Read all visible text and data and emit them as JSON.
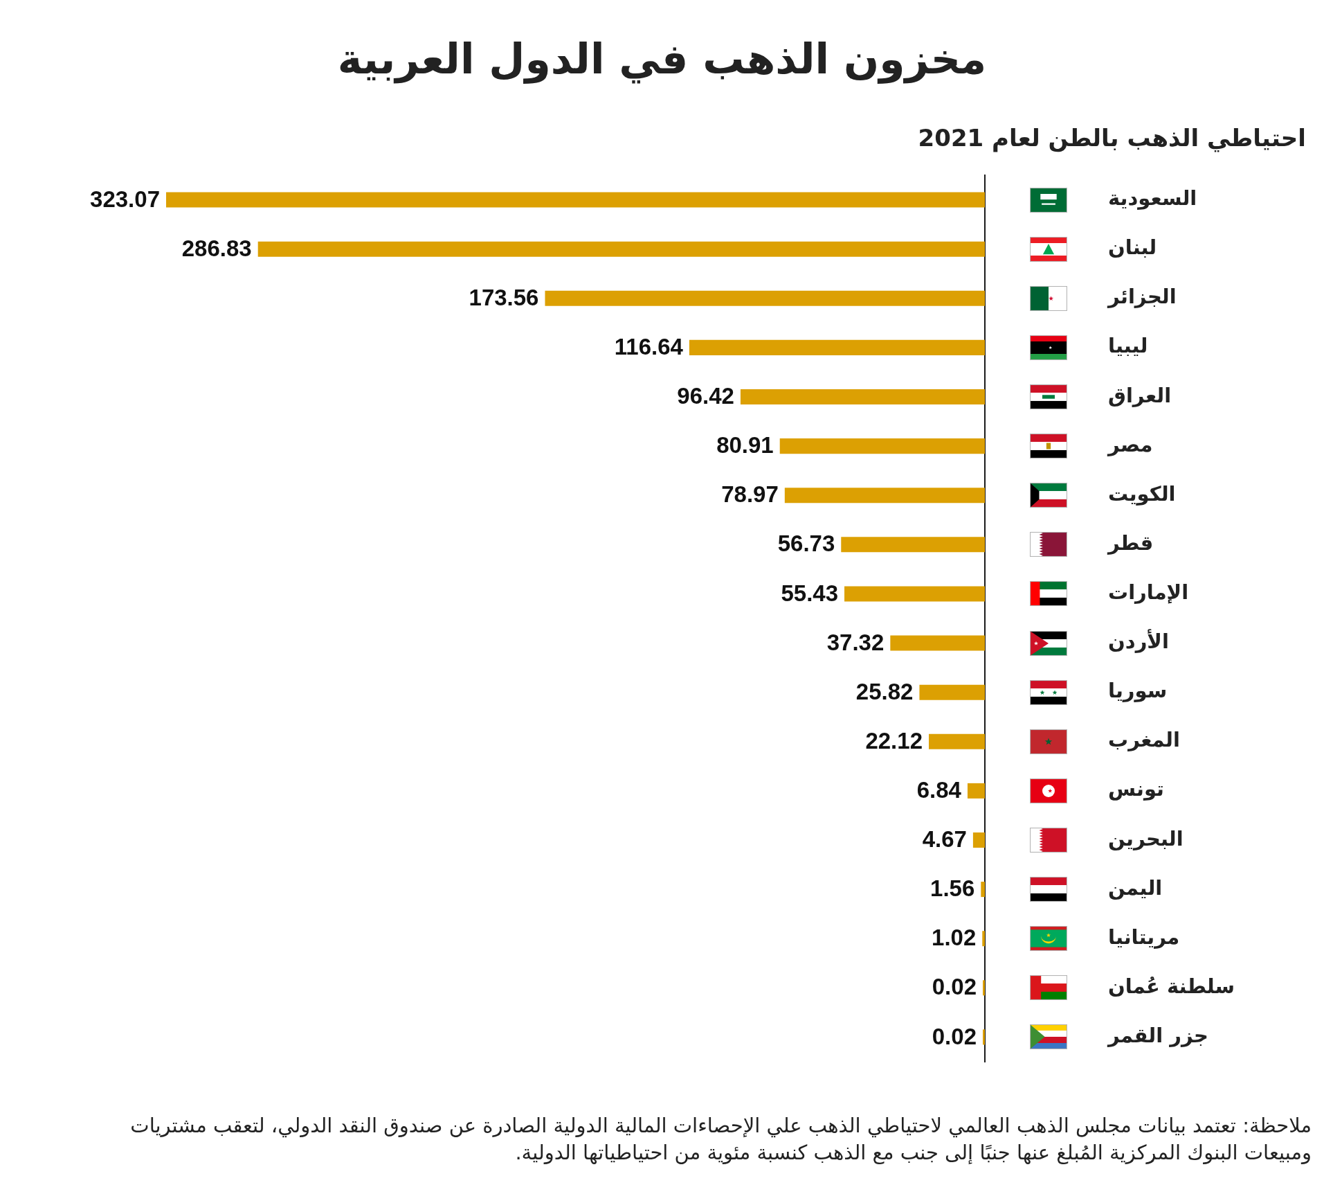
{
  "chart_data": {
    "type": "bar",
    "title": "مخزون الذهب في الدول العربية",
    "subtitle": "احتياطي الذهب بالطن لعام 2021",
    "orientation": "horizontal",
    "categories": [
      "السعودية",
      "لبنان",
      "الجزائر",
      "ليبيا",
      "العراق",
      "مصر",
      "الكويت",
      "قطر",
      "الإمارات",
      "الأردن",
      "سوريا",
      "المغرب",
      "تونس",
      "البحرين",
      "اليمن",
      "مريتانيا",
      "سلطنة عُمان",
      "جزر القمر"
    ],
    "values": [
      323.07,
      286.83,
      173.56,
      116.64,
      96.42,
      80.91,
      78.97,
      56.73,
      55.43,
      37.32,
      25.82,
      22.12,
      6.84,
      4.67,
      1.56,
      1.02,
      0.02,
      0.02
    ],
    "color": "#dca003",
    "data_labels": true,
    "tick_labels": "y",
    "annotations": [
      "ملاحظة: تعتمد بيانات مجلس الذهب العالمي لاحتياطي الذهب علي الإحصاءات المالية الدولية الصادرة عن صندوق النقد الدولي، لتعقب مشتريات ومبيعات البنوك المركزية المُبلغ عنها جنبًا إلى جنب مع الذهب كنسبة مئوية من احتياطياتها الدولية."
    ]
  }
}
